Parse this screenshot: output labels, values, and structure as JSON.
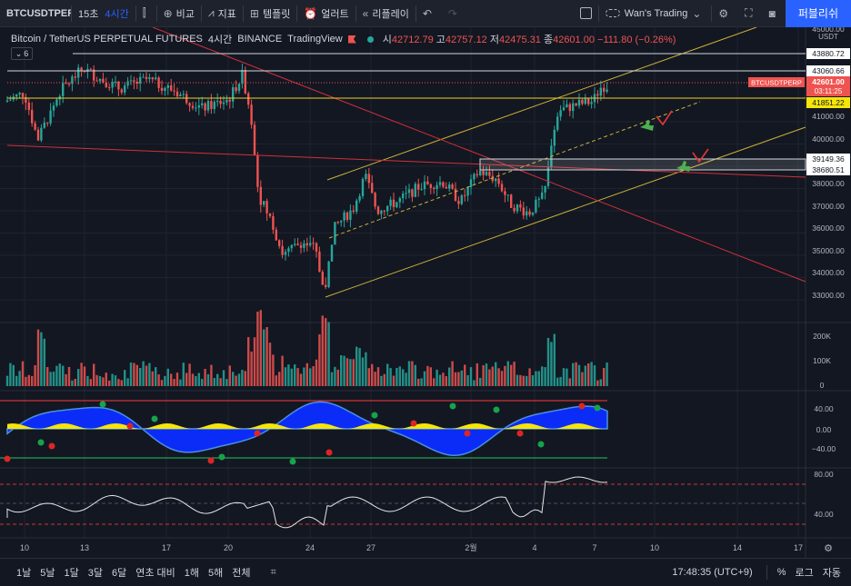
{
  "toolbar": {
    "symbol": "BTCUSDTPERP",
    "interval_15s": "15초",
    "interval_4h": "4시간",
    "compare": "비교",
    "indicators": "지표",
    "templates": "템플릿",
    "alert": "얼러트",
    "replay": "리플레이",
    "layout_name": "Wan's Trading",
    "publish": "퍼블리쉬"
  },
  "legend": {
    "title": "Bitcoin / TetherUS PERPETUAL FUTURES",
    "interval": "4시간",
    "exchange": "BINANCE",
    "source": "TradingView",
    "open_label": "시",
    "open": "42712.79",
    "high_label": "고",
    "high": "42757.12",
    "low_label": "저",
    "low": "42475.31",
    "close_label": "종",
    "close": "42601.00",
    "change": "−111.80 (−0.26%)",
    "indicator_count": "6"
  },
  "colors": {
    "background": "#131722",
    "up": "#26a69a",
    "down": "#ef5350",
    "trend_yellow": "#c9b037",
    "trend_red": "#d0303a",
    "accent": "#2962ff",
    "osc_blue": "#0b2cf7",
    "osc_yellow": "#f5e50a"
  },
  "price_axis": {
    "unit": "USDT",
    "ticks": [
      "45000.00",
      "41000.00",
      "40000.00",
      "39000.00",
      "38000.00",
      "37000.00",
      "36000.00",
      "35000.00",
      "34000.00",
      "33000.00"
    ],
    "labels": {
      "l1": "43880.72",
      "l2": "43060.66",
      "l3": "41851.22",
      "l4": "39149.36",
      "l5": "38680.51",
      "symbol": "BTCUSDTPERP",
      "price": "42601.00",
      "countdown": "03:11:25"
    }
  },
  "volume_axis": {
    "ticks": [
      "200K",
      "100K",
      "0"
    ]
  },
  "osc_axis": {
    "ticks": [
      "40.00",
      "0.00",
      "−40.00"
    ]
  },
  "rsi_axis": {
    "ticks": [
      "80.00",
      "40.00"
    ]
  },
  "time_axis": {
    "ticks": [
      "10",
      "13",
      "17",
      "20",
      "24",
      "27",
      "2월",
      "4",
      "7",
      "10",
      "14",
      "17"
    ]
  },
  "chart_data": {
    "type": "candlestick",
    "y_range": [
      32500,
      45300
    ],
    "trend_lines": [
      {
        "name": "",
        "color": "yellow",
        "from": [
          "Jan 24",
          33000
        ],
        "to": [
          "Feb 17",
          40500
        ]
      },
      {
        "name": "",
        "color": "yellow",
        "from": [
          "Jan 24",
          38300
        ],
        "to": [
          "Feb 14",
          45300
        ]
      },
      {
        "name": "",
        "color": "red",
        "from": [
          "Jan 17",
          45300
        ],
        "to": [
          "Feb 17",
          33600
        ]
      },
      {
        "name": "",
        "color": "red",
        "from": [
          "Jan 9",
          39800
        ],
        "to": [
          "Feb 17",
          38200
        ]
      }
    ],
    "horizontal_levels": [
      43880.72,
      43060.66,
      41851.22,
      39149.36,
      38680.51
    ],
    "last_price": 42601.0,
    "volume_peak": 200000,
    "rsi_levels": [
      80,
      40
    ]
  },
  "bottombar": {
    "ranges": [
      "1날",
      "5날",
      "1달",
      "3달",
      "6달",
      "연초 대비",
      "1해",
      "5해",
      "전체"
    ],
    "clock": "17:48:35 (UTC+9)",
    "percent": "%",
    "log": "로그",
    "auto": "자동"
  }
}
